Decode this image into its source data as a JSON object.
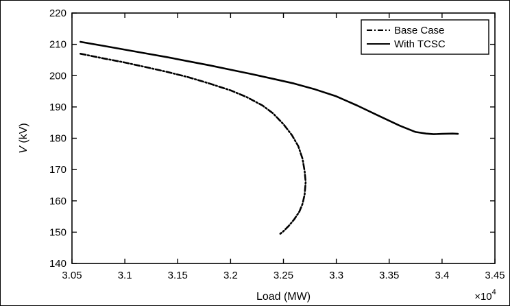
{
  "chart_data": {
    "type": "line",
    "title": "",
    "xlabel": "Load (MW)",
    "ylabel": "V (kV)",
    "ylabel_italic_part": "V",
    "ylabel_rest": " (kV)",
    "x_multiplier_label": "×10",
    "x_multiplier_exp": "4",
    "xlim": [
      3.05,
      3.45
    ],
    "ylim": [
      140,
      220
    ],
    "x_ticks": [
      3.05,
      3.1,
      3.15,
      3.2,
      3.25,
      3.3,
      3.35,
      3.4,
      3.45
    ],
    "x_tick_labels": [
      "3.05",
      "3.1",
      "3.15",
      "3.2",
      "3.25",
      "3.3",
      "3.35",
      "3.4",
      "3.45"
    ],
    "y_ticks": [
      140,
      150,
      160,
      170,
      180,
      190,
      200,
      210,
      220
    ],
    "y_tick_labels": [
      "140",
      "150",
      "160",
      "170",
      "180",
      "190",
      "200",
      "210",
      "220"
    ],
    "grid": false,
    "legend": "top-right",
    "series": [
      {
        "name": "Base Case",
        "style": "dashdot",
        "color": "#000000",
        "x": [
          3.058,
          3.08,
          3.1,
          3.12,
          3.14,
          3.16,
          3.18,
          3.2,
          3.215,
          3.23,
          3.24,
          3.25,
          3.258,
          3.264,
          3.268,
          3.27,
          3.271,
          3.27,
          3.268,
          3.265,
          3.26,
          3.255,
          3.25,
          3.247
        ],
        "y": [
          207,
          205.5,
          204.2,
          202.7,
          201.2,
          199.5,
          197.5,
          195.3,
          193.2,
          190.5,
          188,
          184.5,
          181,
          177.5,
          173.5,
          169.5,
          166,
          162,
          159,
          156.5,
          154,
          152,
          150.3,
          149.5
        ]
      },
      {
        "name": "With TCSC",
        "style": "solid",
        "color": "#000000",
        "x": [
          3.058,
          3.08,
          3.1,
          3.12,
          3.14,
          3.16,
          3.18,
          3.2,
          3.22,
          3.24,
          3.26,
          3.28,
          3.3,
          3.32,
          3.34,
          3.36,
          3.375,
          3.385,
          3.392,
          3.4,
          3.41,
          3.415
        ],
        "y": [
          210.8,
          209.5,
          208.3,
          207.1,
          205.9,
          204.6,
          203.3,
          201.9,
          200.5,
          199,
          197.5,
          195.6,
          193.4,
          190.4,
          187.2,
          184,
          182,
          181.5,
          181.3,
          181.4,
          181.5,
          181.4
        ]
      }
    ]
  }
}
